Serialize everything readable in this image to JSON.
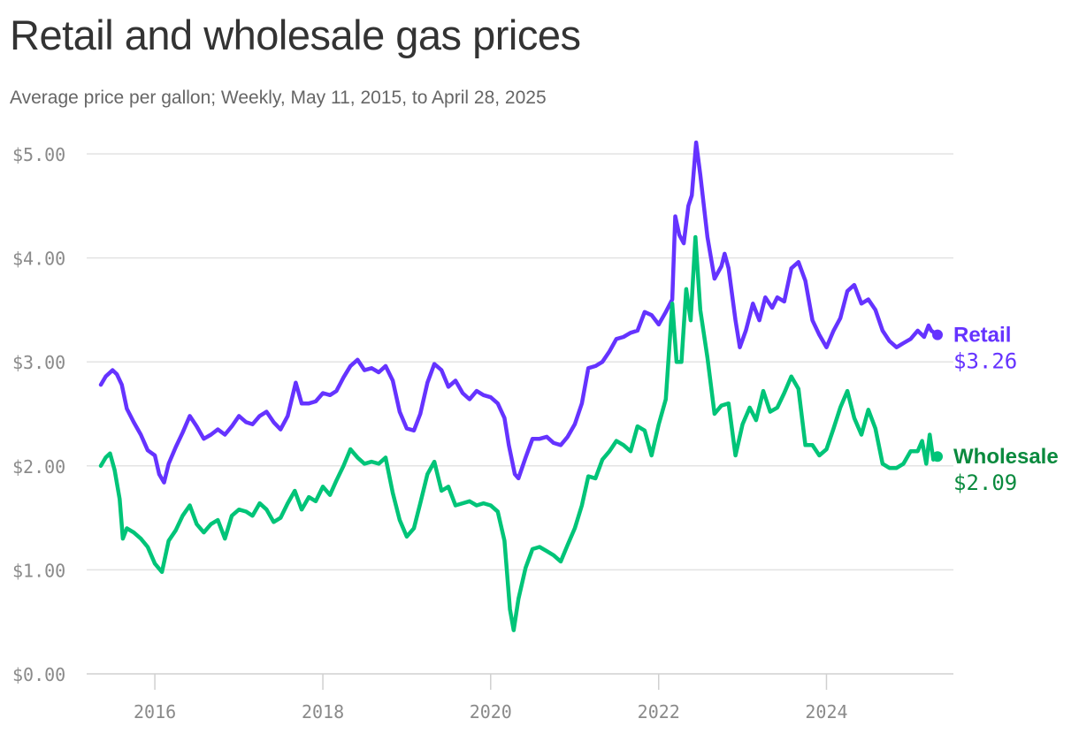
{
  "chart_data": {
    "type": "line",
    "title": "Retail and wholesale gas prices",
    "subtitle": "Average price per gallon; Weekly, May 11, 2015, to April 28, 2025",
    "xlim": [
      "2015-05-11",
      "2025-04-28"
    ],
    "ylim": [
      0,
      5
    ],
    "y_ticks": [
      0,
      1,
      2,
      3,
      4,
      5
    ],
    "y_tick_labels": [
      "$0.00",
      "$1.00",
      "$2.00",
      "$3.00",
      "$4.00",
      "$5.00"
    ],
    "x_ticks": [
      "2016",
      "2018",
      "2020",
      "2022",
      "2024"
    ],
    "grid": "horizontal",
    "series": [
      {
        "name": "Retail",
        "color": "#6533ff",
        "end_label": "$3.26",
        "points": [
          [
            "2015-05-11",
            2.78
          ],
          [
            "2015-06-01",
            2.86
          ],
          [
            "2015-07-01",
            2.92
          ],
          [
            "2015-07-20",
            2.88
          ],
          [
            "2015-08-10",
            2.78
          ],
          [
            "2015-09-01",
            2.55
          ],
          [
            "2015-10-01",
            2.42
          ],
          [
            "2015-11-01",
            2.3
          ],
          [
            "2015-12-01",
            2.15
          ],
          [
            "2016-01-01",
            2.1
          ],
          [
            "2016-01-20",
            1.92
          ],
          [
            "2016-02-10",
            1.84
          ],
          [
            "2016-03-01",
            2.02
          ],
          [
            "2016-04-01",
            2.18
          ],
          [
            "2016-05-01",
            2.32
          ],
          [
            "2016-06-01",
            2.48
          ],
          [
            "2016-07-01",
            2.38
          ],
          [
            "2016-08-01",
            2.26
          ],
          [
            "2016-09-01",
            2.3
          ],
          [
            "2016-10-01",
            2.35
          ],
          [
            "2016-11-01",
            2.3
          ],
          [
            "2016-12-01",
            2.38
          ],
          [
            "2017-01-01",
            2.48
          ],
          [
            "2017-02-01",
            2.42
          ],
          [
            "2017-03-01",
            2.4
          ],
          [
            "2017-04-01",
            2.48
          ],
          [
            "2017-05-01",
            2.52
          ],
          [
            "2017-06-01",
            2.42
          ],
          [
            "2017-07-01",
            2.35
          ],
          [
            "2017-08-01",
            2.48
          ],
          [
            "2017-09-05",
            2.8
          ],
          [
            "2017-10-01",
            2.6
          ],
          [
            "2017-11-01",
            2.6
          ],
          [
            "2017-12-01",
            2.62
          ],
          [
            "2018-01-01",
            2.7
          ],
          [
            "2018-02-01",
            2.68
          ],
          [
            "2018-03-01",
            2.72
          ],
          [
            "2018-04-01",
            2.85
          ],
          [
            "2018-05-01",
            2.96
          ],
          [
            "2018-06-01",
            3.02
          ],
          [
            "2018-07-01",
            2.92
          ],
          [
            "2018-08-01",
            2.94
          ],
          [
            "2018-09-01",
            2.9
          ],
          [
            "2018-10-01",
            2.96
          ],
          [
            "2018-11-01",
            2.82
          ],
          [
            "2018-12-01",
            2.52
          ],
          [
            "2019-01-01",
            2.36
          ],
          [
            "2019-02-01",
            2.34
          ],
          [
            "2019-03-01",
            2.5
          ],
          [
            "2019-04-01",
            2.8
          ],
          [
            "2019-05-01",
            2.98
          ],
          [
            "2019-06-01",
            2.92
          ],
          [
            "2019-07-01",
            2.76
          ],
          [
            "2019-08-01",
            2.82
          ],
          [
            "2019-09-01",
            2.7
          ],
          [
            "2019-10-01",
            2.64
          ],
          [
            "2019-11-01",
            2.72
          ],
          [
            "2019-12-01",
            2.68
          ],
          [
            "2020-01-01",
            2.66
          ],
          [
            "2020-02-01",
            2.6
          ],
          [
            "2020-03-01",
            2.46
          ],
          [
            "2020-03-20",
            2.2
          ],
          [
            "2020-04-15",
            1.92
          ],
          [
            "2020-05-01",
            1.88
          ],
          [
            "2020-06-01",
            2.08
          ],
          [
            "2020-07-01",
            2.26
          ],
          [
            "2020-08-01",
            2.26
          ],
          [
            "2020-09-01",
            2.28
          ],
          [
            "2020-10-01",
            2.22
          ],
          [
            "2020-11-01",
            2.2
          ],
          [
            "2020-12-01",
            2.28
          ],
          [
            "2021-01-01",
            2.4
          ],
          [
            "2021-02-01",
            2.6
          ],
          [
            "2021-03-01",
            2.94
          ],
          [
            "2021-04-01",
            2.96
          ],
          [
            "2021-05-01",
            3.0
          ],
          [
            "2021-06-01",
            3.1
          ],
          [
            "2021-07-01",
            3.22
          ],
          [
            "2021-08-01",
            3.24
          ],
          [
            "2021-09-01",
            3.28
          ],
          [
            "2021-10-01",
            3.3
          ],
          [
            "2021-11-01",
            3.48
          ],
          [
            "2021-12-01",
            3.45
          ],
          [
            "2022-01-01",
            3.36
          ],
          [
            "2022-02-01",
            3.48
          ],
          [
            "2022-03-01",
            3.6
          ],
          [
            "2022-03-14",
            4.4
          ],
          [
            "2022-04-01",
            4.22
          ],
          [
            "2022-04-20",
            4.14
          ],
          [
            "2022-05-10",
            4.5
          ],
          [
            "2022-05-25",
            4.6
          ],
          [
            "2022-06-13",
            5.11
          ],
          [
            "2022-07-01",
            4.8
          ],
          [
            "2022-08-01",
            4.2
          ],
          [
            "2022-09-01",
            3.8
          ],
          [
            "2022-10-01",
            3.92
          ],
          [
            "2022-10-15",
            4.04
          ],
          [
            "2022-11-01",
            3.9
          ],
          [
            "2022-12-01",
            3.4
          ],
          [
            "2022-12-20",
            3.14
          ],
          [
            "2023-01-15",
            3.3
          ],
          [
            "2023-02-15",
            3.56
          ],
          [
            "2023-03-15",
            3.4
          ],
          [
            "2023-04-10",
            3.62
          ],
          [
            "2023-05-10",
            3.52
          ],
          [
            "2023-06-01",
            3.62
          ],
          [
            "2023-07-01",
            3.58
          ],
          [
            "2023-08-01",
            3.9
          ],
          [
            "2023-09-01",
            3.96
          ],
          [
            "2023-10-01",
            3.78
          ],
          [
            "2023-11-01",
            3.4
          ],
          [
            "2023-12-01",
            3.26
          ],
          [
            "2024-01-01",
            3.14
          ],
          [
            "2024-02-01",
            3.3
          ],
          [
            "2024-03-01",
            3.42
          ],
          [
            "2024-04-01",
            3.68
          ],
          [
            "2024-05-01",
            3.74
          ],
          [
            "2024-06-01",
            3.56
          ],
          [
            "2024-07-01",
            3.6
          ],
          [
            "2024-08-01",
            3.5
          ],
          [
            "2024-09-01",
            3.3
          ],
          [
            "2024-10-01",
            3.2
          ],
          [
            "2024-11-01",
            3.14
          ],
          [
            "2024-12-01",
            3.18
          ],
          [
            "2025-01-01",
            3.22
          ],
          [
            "2025-02-01",
            3.3
          ],
          [
            "2025-03-01",
            3.24
          ],
          [
            "2025-03-20",
            3.35
          ],
          [
            "2025-04-01",
            3.3
          ],
          [
            "2025-04-14",
            3.28
          ],
          [
            "2025-04-28",
            3.26
          ]
        ]
      },
      {
        "name": "Wholesale",
        "color": "#00c478",
        "end_label": "$2.09",
        "points": [
          [
            "2015-05-11",
            2.0
          ],
          [
            "2015-06-01",
            2.08
          ],
          [
            "2015-06-20",
            2.12
          ],
          [
            "2015-07-10",
            1.96
          ],
          [
            "2015-08-01",
            1.68
          ],
          [
            "2015-08-15",
            1.3
          ],
          [
            "2015-09-01",
            1.4
          ],
          [
            "2015-10-01",
            1.36
          ],
          [
            "2015-11-01",
            1.3
          ],
          [
            "2015-12-01",
            1.22
          ],
          [
            "2016-01-01",
            1.06
          ],
          [
            "2016-02-01",
            0.98
          ],
          [
            "2016-03-01",
            1.28
          ],
          [
            "2016-04-01",
            1.38
          ],
          [
            "2016-05-01",
            1.52
          ],
          [
            "2016-06-01",
            1.62
          ],
          [
            "2016-07-01",
            1.44
          ],
          [
            "2016-08-01",
            1.36
          ],
          [
            "2016-09-01",
            1.44
          ],
          [
            "2016-10-01",
            1.48
          ],
          [
            "2016-11-01",
            1.3
          ],
          [
            "2016-12-01",
            1.52
          ],
          [
            "2017-01-01",
            1.58
          ],
          [
            "2017-02-01",
            1.56
          ],
          [
            "2017-03-01",
            1.52
          ],
          [
            "2017-04-01",
            1.64
          ],
          [
            "2017-05-01",
            1.58
          ],
          [
            "2017-06-01",
            1.46
          ],
          [
            "2017-07-01",
            1.5
          ],
          [
            "2017-08-01",
            1.64
          ],
          [
            "2017-09-01",
            1.76
          ],
          [
            "2017-10-01",
            1.58
          ],
          [
            "2017-11-01",
            1.7
          ],
          [
            "2017-12-01",
            1.66
          ],
          [
            "2018-01-01",
            1.8
          ],
          [
            "2018-02-01",
            1.72
          ],
          [
            "2018-03-01",
            1.86
          ],
          [
            "2018-04-01",
            2.0
          ],
          [
            "2018-05-01",
            2.16
          ],
          [
            "2018-06-01",
            2.08
          ],
          [
            "2018-07-01",
            2.02
          ],
          [
            "2018-08-01",
            2.04
          ],
          [
            "2018-09-01",
            2.02
          ],
          [
            "2018-10-01",
            2.08
          ],
          [
            "2018-11-01",
            1.74
          ],
          [
            "2018-12-01",
            1.48
          ],
          [
            "2019-01-01",
            1.32
          ],
          [
            "2019-02-01",
            1.4
          ],
          [
            "2019-03-01",
            1.64
          ],
          [
            "2019-04-01",
            1.92
          ],
          [
            "2019-05-01",
            2.04
          ],
          [
            "2019-06-01",
            1.76
          ],
          [
            "2019-07-01",
            1.8
          ],
          [
            "2019-08-01",
            1.62
          ],
          [
            "2019-09-01",
            1.64
          ],
          [
            "2019-10-01",
            1.66
          ],
          [
            "2019-11-01",
            1.62
          ],
          [
            "2019-12-01",
            1.64
          ],
          [
            "2020-01-01",
            1.62
          ],
          [
            "2020-02-01",
            1.56
          ],
          [
            "2020-03-01",
            1.28
          ],
          [
            "2020-03-25",
            0.62
          ],
          [
            "2020-04-10",
            0.42
          ],
          [
            "2020-05-01",
            0.72
          ],
          [
            "2020-06-01",
            1.02
          ],
          [
            "2020-07-01",
            1.2
          ],
          [
            "2020-08-01",
            1.22
          ],
          [
            "2020-09-01",
            1.18
          ],
          [
            "2020-10-01",
            1.14
          ],
          [
            "2020-11-01",
            1.08
          ],
          [
            "2020-12-01",
            1.24
          ],
          [
            "2021-01-01",
            1.4
          ],
          [
            "2021-02-01",
            1.62
          ],
          [
            "2021-03-01",
            1.9
          ],
          [
            "2021-04-01",
            1.88
          ],
          [
            "2021-05-01",
            2.06
          ],
          [
            "2021-06-01",
            2.14
          ],
          [
            "2021-07-01",
            2.24
          ],
          [
            "2021-08-01",
            2.2
          ],
          [
            "2021-09-01",
            2.14
          ],
          [
            "2021-10-01",
            2.38
          ],
          [
            "2021-11-01",
            2.34
          ],
          [
            "2021-12-01",
            2.1
          ],
          [
            "2022-01-01",
            2.4
          ],
          [
            "2022-02-01",
            2.64
          ],
          [
            "2022-03-01",
            3.56
          ],
          [
            "2022-03-20",
            3.0
          ],
          [
            "2022-04-10",
            3.0
          ],
          [
            "2022-05-01",
            3.7
          ],
          [
            "2022-05-20",
            3.4
          ],
          [
            "2022-06-10",
            4.2
          ],
          [
            "2022-07-01",
            3.5
          ],
          [
            "2022-08-01",
            3.04
          ],
          [
            "2022-09-01",
            2.5
          ],
          [
            "2022-10-01",
            2.58
          ],
          [
            "2022-11-01",
            2.6
          ],
          [
            "2022-12-01",
            2.1
          ],
          [
            "2023-01-01",
            2.4
          ],
          [
            "2023-02-01",
            2.56
          ],
          [
            "2023-03-01",
            2.44
          ],
          [
            "2023-04-01",
            2.72
          ],
          [
            "2023-05-01",
            2.52
          ],
          [
            "2023-06-01",
            2.56
          ],
          [
            "2023-07-01",
            2.7
          ],
          [
            "2023-08-01",
            2.86
          ],
          [
            "2023-09-01",
            2.74
          ],
          [
            "2023-10-01",
            2.2
          ],
          [
            "2023-11-01",
            2.2
          ],
          [
            "2023-12-01",
            2.1
          ],
          [
            "2024-01-01",
            2.16
          ],
          [
            "2024-02-01",
            2.36
          ],
          [
            "2024-03-01",
            2.56
          ],
          [
            "2024-04-01",
            2.72
          ],
          [
            "2024-05-01",
            2.46
          ],
          [
            "2024-06-01",
            2.3
          ],
          [
            "2024-07-01",
            2.54
          ],
          [
            "2024-08-01",
            2.36
          ],
          [
            "2024-09-01",
            2.02
          ],
          [
            "2024-10-01",
            1.98
          ],
          [
            "2024-11-01",
            1.98
          ],
          [
            "2024-12-01",
            2.02
          ],
          [
            "2025-01-01",
            2.14
          ],
          [
            "2025-02-01",
            2.14
          ],
          [
            "2025-02-20",
            2.24
          ],
          [
            "2025-03-10",
            2.02
          ],
          [
            "2025-03-25",
            2.3
          ],
          [
            "2025-04-10",
            2.06
          ],
          [
            "2025-04-28",
            2.09
          ]
        ]
      }
    ]
  }
}
